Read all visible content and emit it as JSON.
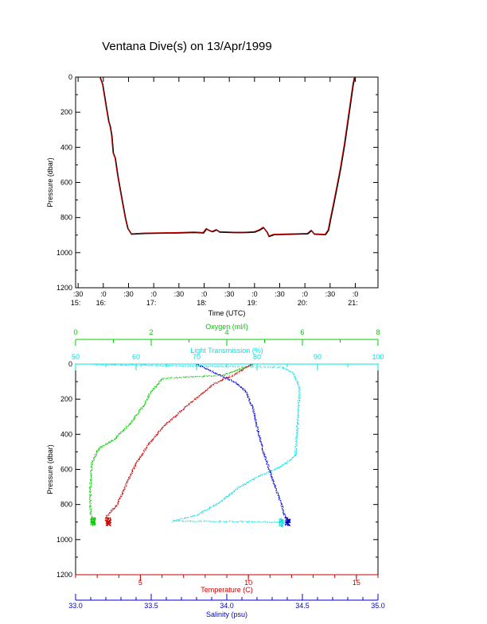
{
  "title": "Ventana Dive(s) on 13/Apr/1999",
  "chart_data": [
    {
      "type": "line",
      "id": "pressure-vs-time",
      "xlabel": "Time (UTC)",
      "ylabel": "Pressure (dbar)",
      "x_ticks": [
        {
          "t": 15.5,
          "top": ":30",
          "bottom": "15:"
        },
        {
          "t": 16.0,
          "top": ":0",
          "bottom": "16:"
        },
        {
          "t": 16.5,
          "top": ":30",
          "bottom": ""
        },
        {
          "t": 17.0,
          "top": ":0",
          "bottom": "17:"
        },
        {
          "t": 17.5,
          "top": ":30",
          "bottom": ""
        },
        {
          "t": 18.0,
          "top": ":0",
          "bottom": "18:"
        },
        {
          "t": 18.5,
          "top": ":30",
          "bottom": ""
        },
        {
          "t": 19.0,
          "top": ":0",
          "bottom": "19:"
        },
        {
          "t": 19.5,
          "top": ":30",
          "bottom": ""
        },
        {
          "t": 20.0,
          "top": ":0",
          "bottom": "20:"
        },
        {
          "t": 20.5,
          "top": ":30",
          "bottom": ""
        },
        {
          "t": 21.0,
          "top": ":0",
          "bottom": "21:"
        }
      ],
      "xlim": [
        15.45,
        21.45
      ],
      "y_ticks": [
        "0",
        "200",
        "400",
        "600",
        "800",
        "1000",
        "1200"
      ],
      "ylim": [
        0,
        1200
      ],
      "y_reversed": true,
      "series_color": "#cc0000",
      "points": [
        [
          15.93,
          0
        ],
        [
          15.98,
          40
        ],
        [
          16.02,
          110
        ],
        [
          16.06,
          180
        ],
        [
          16.1,
          250
        ],
        [
          16.13,
          280
        ],
        [
          16.16,
          330
        ],
        [
          16.19,
          430
        ],
        [
          16.23,
          460
        ],
        [
          16.28,
          560
        ],
        [
          16.33,
          640
        ],
        [
          16.38,
          720
        ],
        [
          16.43,
          800
        ],
        [
          16.48,
          860
        ],
        [
          16.55,
          892
        ],
        [
          16.8,
          888
        ],
        [
          17.1,
          886
        ],
        [
          17.5,
          885
        ],
        [
          17.8,
          882
        ],
        [
          17.98,
          885
        ],
        [
          18.04,
          862
        ],
        [
          18.1,
          872
        ],
        [
          18.16,
          878
        ],
        [
          18.24,
          868
        ],
        [
          18.3,
          880
        ],
        [
          18.6,
          883
        ],
        [
          18.8,
          883
        ],
        [
          19.0,
          880
        ],
        [
          19.1,
          868
        ],
        [
          19.17,
          855
        ],
        [
          19.24,
          880
        ],
        [
          19.28,
          905
        ],
        [
          19.38,
          895
        ],
        [
          19.6,
          893
        ],
        [
          19.8,
          892
        ],
        [
          20.05,
          890
        ],
        [
          20.12,
          872
        ],
        [
          20.18,
          892
        ],
        [
          20.4,
          895
        ],
        [
          20.46,
          870
        ],
        [
          20.5,
          810
        ],
        [
          20.55,
          740
        ],
        [
          20.62,
          640
        ],
        [
          20.7,
          520
        ],
        [
          20.78,
          380
        ],
        [
          20.84,
          260
        ],
        [
          20.9,
          140
        ],
        [
          20.95,
          40
        ],
        [
          20.98,
          0
        ]
      ]
    },
    {
      "type": "scatter",
      "id": "profiles",
      "ylabel": "Pressure (dbar)",
      "y_ticks": [
        "0",
        "200",
        "400",
        "600",
        "800",
        "1000",
        "1200"
      ],
      "ylim": [
        0,
        1200
      ],
      "y_reversed": true,
      "axes": {
        "oxygen": {
          "label": "Oxygen (ml/l)",
          "color": "#00cc00",
          "lim": [
            0,
            8
          ],
          "ticks": [
            "0",
            "2",
            "4",
            "6",
            "8"
          ]
        },
        "transmission": {
          "label": "Light Transmission (%)",
          "color": "#00e5e5",
          "lim": [
            50,
            100
          ],
          "ticks": [
            "50",
            "60",
            "70",
            "80",
            "90",
            "100"
          ]
        },
        "temperature": {
          "label": "Temperature (C)",
          "color": "#cc0000",
          "lim": [
            2,
            16
          ],
          "ticks": [
            "5",
            "10",
            "15"
          ]
        },
        "salinity": {
          "label": "Salinity (psu)",
          "color": "#0000cc",
          "lim": [
            33.0,
            35.0
          ],
          "ticks": [
            "33.0",
            "33.5",
            "34.0",
            "34.5",
            "35.0"
          ]
        }
      },
      "series": [
        {
          "axis": "oxygen",
          "color": "#00cc00",
          "points": [
            [
              4.7,
              0
            ],
            [
              3.9,
              60
            ],
            [
              2.3,
              80
            ],
            [
              2.0,
              150
            ],
            [
              1.8,
              230
            ],
            [
              1.5,
              320
            ],
            [
              1.05,
              420
            ],
            [
              0.6,
              480
            ],
            [
              0.42,
              560
            ],
            [
              0.38,
              700
            ],
            [
              0.38,
              820
            ],
            [
              0.42,
              880
            ],
            [
              0.45,
              895
            ]
          ]
        },
        {
          "axis": "transmission",
          "color": "#00e5e5",
          "points": [
            [
              53,
              0
            ],
            [
              70,
              10
            ],
            [
              84,
              15
            ],
            [
              86,
              50
            ],
            [
              87,
              140
            ],
            [
              86.8,
              240
            ],
            [
              86.5,
              400
            ],
            [
              86.3,
              520
            ],
            [
              84,
              580
            ],
            [
              80,
              640
            ],
            [
              77,
              700
            ],
            [
              74,
              780
            ],
            [
              70,
              860
            ],
            [
              66,
              892
            ],
            [
              79,
              895
            ],
            [
              84,
              900
            ]
          ]
        },
        {
          "axis": "temperature",
          "color": "#cc0000",
          "points": [
            [
              10.1,
              0
            ],
            [
              9.3,
              60
            ],
            [
              8.4,
              110
            ],
            [
              7.1,
              240
            ],
            [
              6.0,
              360
            ],
            [
              5.4,
              450
            ],
            [
              4.8,
              560
            ],
            [
              4.3,
              690
            ],
            [
              3.9,
              800
            ],
            [
              3.45,
              860
            ],
            [
              3.35,
              890
            ],
            [
              3.5,
              895
            ]
          ]
        },
        {
          "axis": "salinity",
          "color": "#0000cc",
          "points": [
            [
              33.8,
              0
            ],
            [
              33.95,
              60
            ],
            [
              34.05,
              100
            ],
            [
              34.12,
              150
            ],
            [
              34.17,
              250
            ],
            [
              34.21,
              400
            ],
            [
              34.24,
              500
            ],
            [
              34.28,
              600
            ],
            [
              34.32,
              700
            ],
            [
              34.36,
              800
            ],
            [
              34.38,
              860
            ],
            [
              34.4,
              895
            ]
          ]
        }
      ]
    }
  ]
}
